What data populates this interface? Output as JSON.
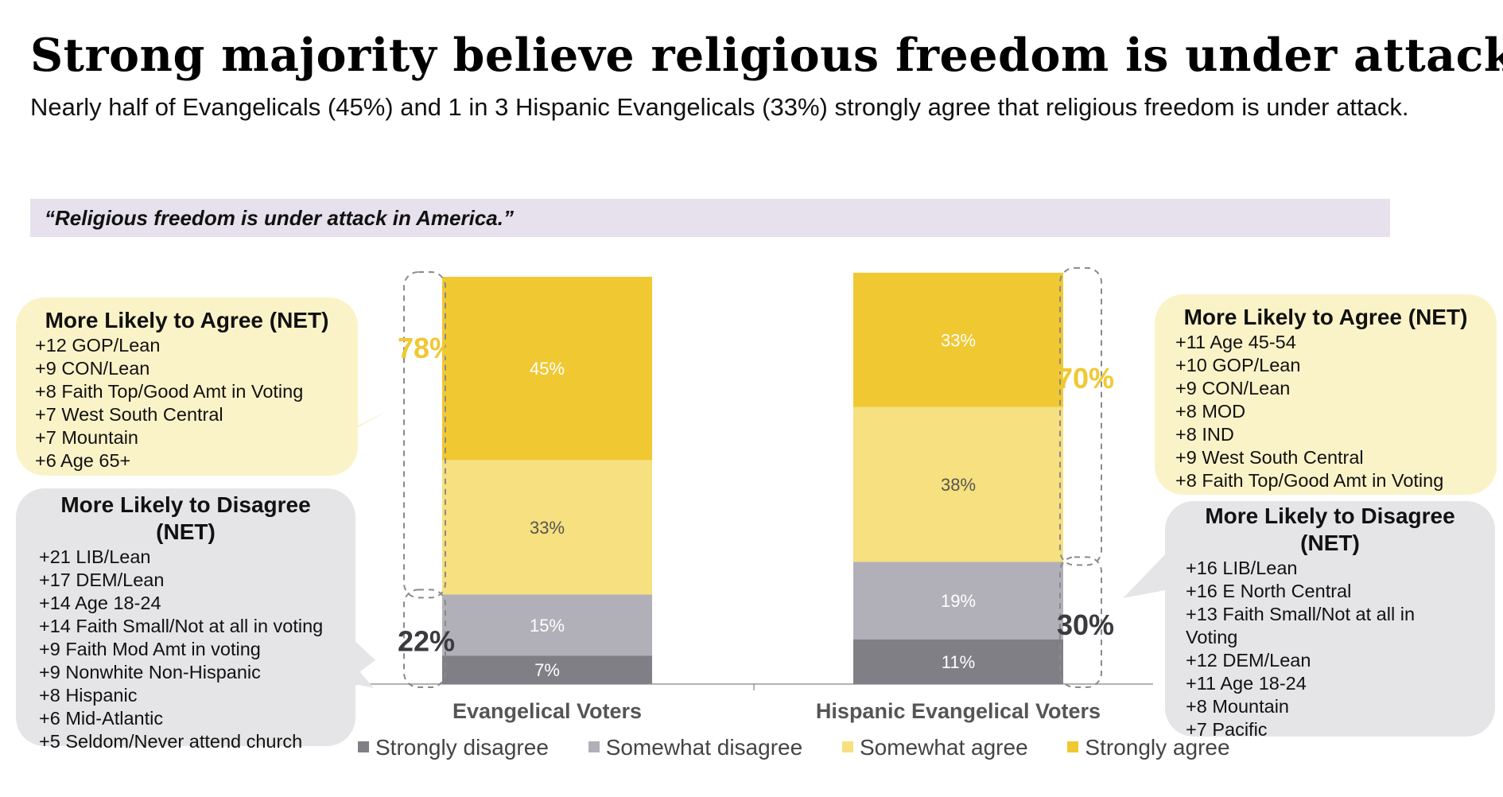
{
  "title": "Strong majority believe religious freedom is under attack.",
  "subtitle": "Nearly half of Evangelicals (45%) and 1 in 3 Hispanic Evangelicals (33%) strongly agree that religious freedom is under attack.",
  "question": "“Religious freedom is under attack in America.”",
  "colors": {
    "strongly_disagree": "#807f86",
    "somewhat_disagree": "#b1b0b8",
    "somewhat_agree": "#f6e07f",
    "strongly_agree": "#f0c832",
    "net_agree_text": "#f0c832",
    "net_disagree_text": "#3a3a3f"
  },
  "chart_data": {
    "type": "bar",
    "stacked": true,
    "categories": [
      "Evangelical Voters",
      "Hispanic Evangelical Voters"
    ],
    "series": [
      {
        "name": "Strongly disagree",
        "values": [
          7,
          11
        ],
        "labels": [
          "7%",
          "11%"
        ]
      },
      {
        "name": "Somewhat disagree",
        "values": [
          15,
          19
        ],
        "labels": [
          "15%",
          "19%"
        ]
      },
      {
        "name": "Somewhat agree",
        "values": [
          33,
          38
        ],
        "labels": [
          "33%",
          "38%"
        ]
      },
      {
        "name": "Strongly agree",
        "values": [
          45,
          33
        ],
        "labels": [
          "45%",
          "33%"
        ]
      }
    ],
    "net_agree": [
      "78%",
      "70%"
    ],
    "net_disagree": [
      "22%",
      "30%"
    ],
    "ylim": [
      0,
      100
    ],
    "legend_position": "bottom"
  },
  "callouts": {
    "left_agree": {
      "heading": "More Likely to Agree (NET)",
      "items": [
        "+12 GOP/Lean",
        "+9 CON/Lean",
        "+8 Faith Top/Good Amt in Voting",
        "+7 West South Central",
        "+7 Mountain",
        "+6 Age 65+"
      ]
    },
    "left_disagree": {
      "heading": "More Likely to Disagree (NET)",
      "items": [
        "+21 LIB/Lean",
        "+17 DEM/Lean",
        "+14 Age 18-24",
        "+14 Faith Small/Not at all in voting",
        "+9 Faith Mod Amt in voting",
        "+9 Nonwhite Non-Hispanic",
        "+8 Hispanic",
        "+6 Mid-Atlantic",
        "+5 Seldom/Never attend church"
      ]
    },
    "right_agree": {
      "heading": "More Likely to Agree (NET)",
      "items": [
        "+11 Age 45-54",
        "+10 GOP/Lean",
        "+9 CON/Lean",
        "+8 MOD",
        "+8 IND",
        "+9 West South Central",
        "+8 Faith Top/Good Amt in Voting"
      ]
    },
    "right_disagree": {
      "heading": "More Likely to Disagree (NET)",
      "items": [
        "+16 LIB/Lean",
        "+16 E North Central",
        "+13 Faith Small/Not at all in Voting",
        "+12 DEM/Lean",
        "+11 Age 18-24",
        "+8 Mountain",
        "+7 Pacific"
      ]
    }
  }
}
